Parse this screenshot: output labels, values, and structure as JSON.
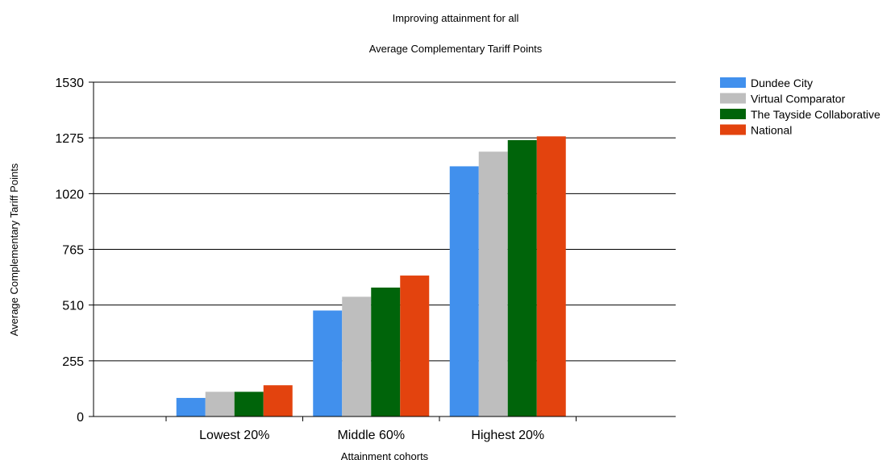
{
  "chart_data": {
    "type": "bar",
    "title": "Improving attainment for all",
    "subtitle": "Average Complementary Tariff Points",
    "xlabel": "Attainment cohorts",
    "ylabel": "Average Complementary Tariff Points",
    "ylim": [
      0,
      1530
    ],
    "yticks": [
      "0",
      "255",
      "510",
      "765",
      "1020",
      "1275",
      "1530"
    ],
    "grid": "horizontal",
    "legend_position": "right",
    "categories": [
      "Lowest 20%",
      "Middle 60%",
      "Highest 20%"
    ],
    "series": [
      {
        "name": "Dundee City",
        "color": "#4190ED",
        "values": [
          85,
          485,
          1145
        ]
      },
      {
        "name": "Virtual Comparator",
        "color": "#BEBEBE",
        "values": [
          113,
          548,
          1212
        ]
      },
      {
        "name": "The Tayside Collaborative",
        "color": "#00640A",
        "values": [
          113,
          590,
          1265
        ]
      },
      {
        "name": "National",
        "color": "#E3430E",
        "values": [
          143,
          645,
          1282
        ]
      }
    ]
  }
}
